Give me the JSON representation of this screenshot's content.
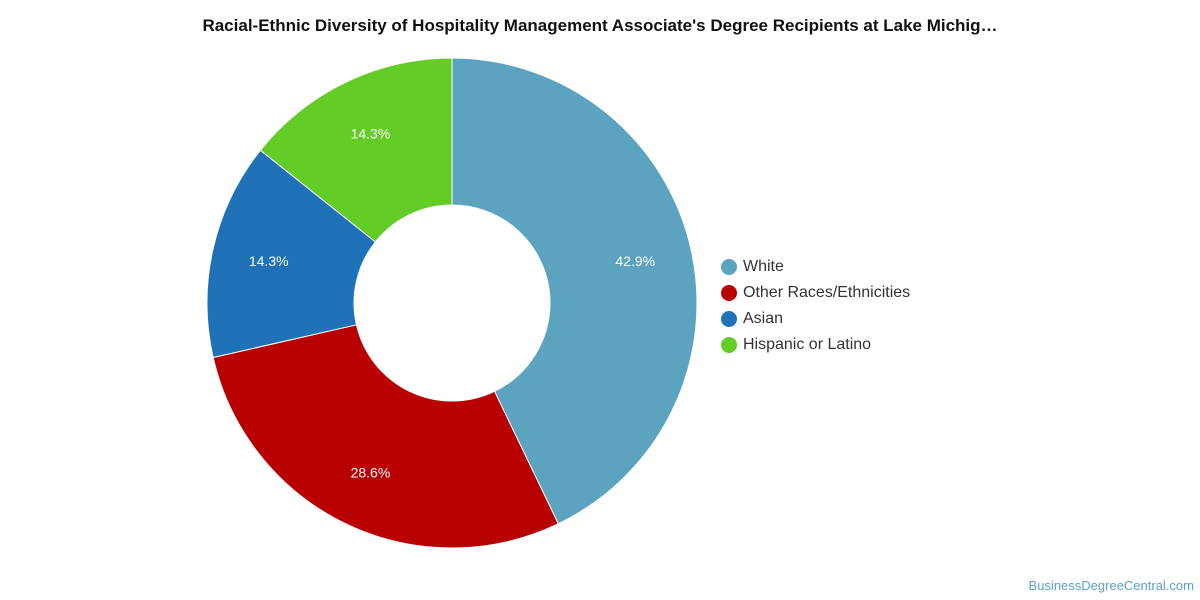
{
  "title": "Racial-Ethnic Diversity of Hospitality Management Associate's Degree Recipients at Lake Michig…",
  "watermark": "BusinessDegreeCentral.com",
  "chart_data": {
    "type": "pie",
    "donut": true,
    "title": "Racial-Ethnic Diversity of Hospitality Management Associate's Degree Recipients at Lake Michig…",
    "legend_position": "right",
    "slices": [
      {
        "name": "White",
        "value": 42.9,
        "label": "42.9%",
        "color": "#5ca3c0"
      },
      {
        "name": "Other Races/Ethnicities",
        "value": 28.6,
        "label": "28.6%",
        "color": "#b80000"
      },
      {
        "name": "Asian",
        "value": 14.3,
        "label": "14.3%",
        "color": "#1f72b8"
      },
      {
        "name": "Hispanic or Latino",
        "value": 14.3,
        "label": "14.3%",
        "color": "#63cc26"
      }
    ]
  }
}
